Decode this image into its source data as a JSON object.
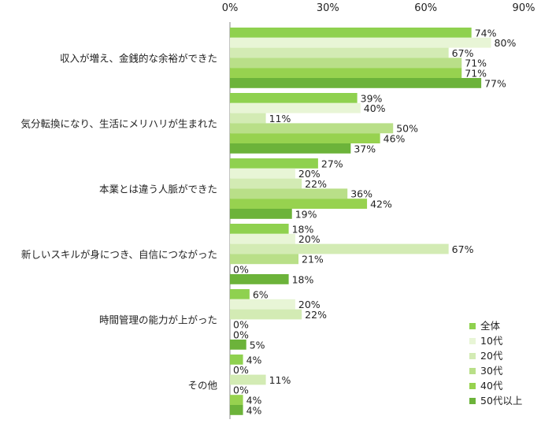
{
  "chart_data": {
    "type": "bar",
    "orientation": "horizontal",
    "title": "",
    "xlabel": "",
    "ylabel": "",
    "xlim": [
      0,
      90
    ],
    "x_ticks": [
      "0%",
      "30%",
      "60%",
      "90%"
    ],
    "value_suffix": "%",
    "grid": false,
    "legend_position": "bottom-right",
    "categories": [
      "収入が増え、金銭的な余裕ができた",
      "気分転換になり、生活にメリハリが生まれた",
      "本業とは違う人脈ができた",
      "新しいスキルが身につき、自信につながった",
      "時間管理の能力が上がった",
      "その他"
    ],
    "series": [
      {
        "name": "全体",
        "color": "#8fd14f",
        "values": [
          74,
          39,
          27,
          18,
          6,
          4
        ]
      },
      {
        "name": "10代",
        "color": "#e8f5d6",
        "values": [
          80,
          40,
          20,
          20,
          20,
          0
        ]
      },
      {
        "name": "20代",
        "color": "#d3ebb4",
        "values": [
          67,
          11,
          22,
          67,
          22,
          11
        ]
      },
      {
        "name": "30代",
        "color": "#b9df88",
        "values": [
          71,
          50,
          36,
          21,
          0,
          0
        ]
      },
      {
        "name": "40代",
        "color": "#97d24f",
        "values": [
          71,
          46,
          42,
          0,
          0,
          4
        ]
      },
      {
        "name": "50代以上",
        "color": "#6cb33a",
        "values": [
          77,
          37,
          19,
          18,
          5,
          4
        ]
      }
    ]
  }
}
